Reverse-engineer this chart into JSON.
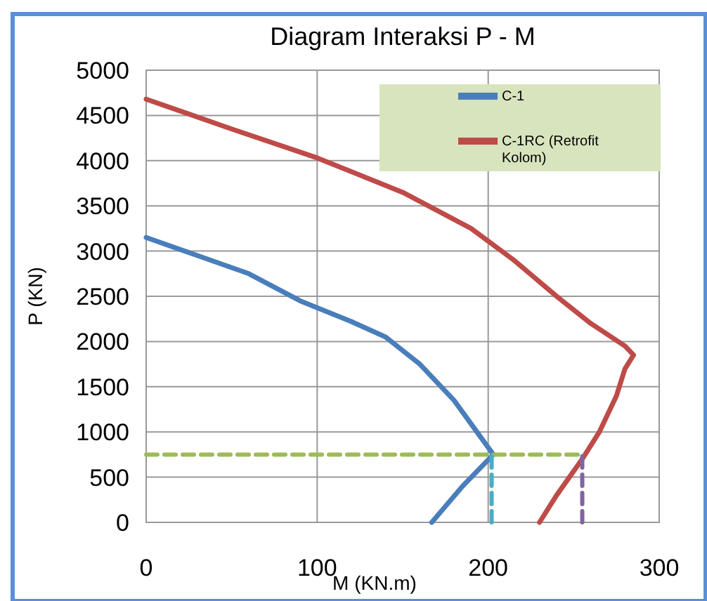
{
  "chart_data": {
    "type": "line",
    "title": "Diagram Interaksi P - M",
    "xlabel": "M (KN.m)",
    "ylabel": "P (KN)",
    "xlim": [
      0,
      300
    ],
    "xticks": [
      0,
      100,
      200,
      300
    ],
    "ylim": [
      0,
      5000
    ],
    "yticks": [
      0,
      500,
      1000,
      1500,
      2000,
      2500,
      3000,
      3500,
      4000,
      4500,
      5000
    ],
    "grid": true,
    "legend": "top right",
    "marker": "none",
    "line_style": "solid",
    "series": [
      {
        "name": "C-1",
        "color": "#4a7ebb",
        "x": [
          0,
          30,
          60,
          90,
          120,
          140,
          160,
          180,
          203,
          185,
          167
        ],
        "values": [
          3150,
          2950,
          2750,
          2450,
          2220,
          2050,
          1750,
          1350,
          750,
          400,
          0
        ]
      },
      {
        "name": "C-1RC (Retrofit Kolom)",
        "color": "#be4b48",
        "x": [
          0,
          50,
          100,
          150,
          190,
          215,
          240,
          260,
          280,
          285,
          280,
          275,
          265,
          255,
          240,
          230
        ],
        "values": [
          4680,
          4350,
          4030,
          3650,
          3250,
          2900,
          2500,
          2200,
          1950,
          1850,
          1700,
          1400,
          1000,
          700,
          300,
          0
        ]
      },
      {
        "color": "#9bbb59",
        "line_style": "dashed",
        "x": [
          0,
          255
        ],
        "values": [
          750,
          750
        ]
      },
      {
        "color": "#4bacc6",
        "line_style": "dashed",
        "x": [
          202,
          202
        ],
        "values": [
          0,
          750
        ]
      },
      {
        "color": "#8064a2",
        "line_style": "dashed",
        "x": [
          255,
          255
        ],
        "values": [
          0,
          750
        ]
      }
    ]
  }
}
